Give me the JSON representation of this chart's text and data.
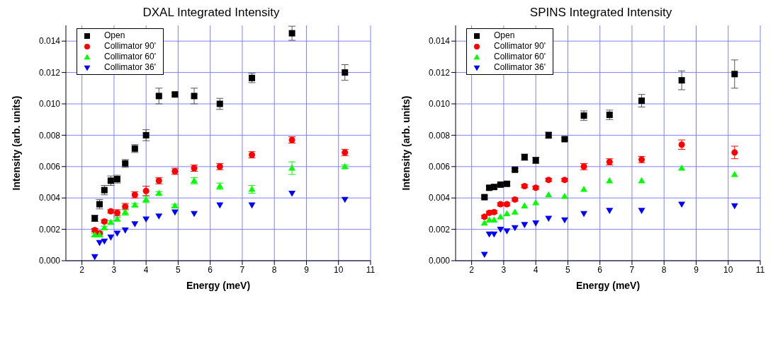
{
  "chart_data": [
    {
      "type": "scatter",
      "title": "DXAL Integrated Intensity",
      "xlabel": "Energy (meV)",
      "ylabel": "Intensity (arb. units)",
      "x": [
        2.4,
        2.55,
        2.7,
        2.9,
        3.1,
        3.35,
        3.65,
        4.0,
        4.4,
        4.9,
        5.5,
        6.3,
        7.3,
        8.55,
        10.2
      ],
      "series": [
        {
          "name": "Open",
          "color": "#000000",
          "marker": "square",
          "values": [
            0.0027,
            0.0036,
            0.0045,
            0.0051,
            0.0052,
            0.0062,
            0.00715,
            0.008,
            0.0105,
            0.0106,
            0.0105,
            0.01,
            0.01165,
            0.0145,
            0.012
          ],
          "errors": [
            0.0002,
            0.0003,
            0.0003,
            0.0003,
            0.00025,
            0.00025,
            0.00025,
            0.00035,
            0.0005,
            0.0001,
            0.0005,
            0.00035,
            0.0003,
            0.00045,
            0.0005
          ]
        },
        {
          "name": "Collimator 90'",
          "color": "#ff0000",
          "marker": "circle",
          "values": [
            0.00195,
            0.00175,
            0.0025,
            0.00315,
            0.00305,
            0.00345,
            0.0042,
            0.00445,
            0.0051,
            0.0057,
            0.0059,
            0.006,
            0.00675,
            0.0077,
            0.0069
          ],
          "errors": [
            0.0001,
            0.0001,
            0.0001,
            0.0001,
            0.0002,
            0.0002,
            0.0002,
            0.0003,
            0.0002,
            0.0002,
            0.0002,
            0.0002,
            0.0002,
            0.0002,
            0.0002
          ]
        },
        {
          "name": "Collimator 60'",
          "color": "#00ff00",
          "marker": "triangle",
          "values": [
            0.00165,
            0.00165,
            0.0021,
            0.00245,
            0.00265,
            0.0031,
            0.00355,
            0.0039,
            0.0043,
            0.0035,
            0.0051,
            0.00475,
            0.00455,
            0.0059,
            0.006
          ],
          "errors": [
            0.0001,
            0.0001,
            0.0001,
            0.0001,
            0.0001,
            0.0002,
            0.0001,
            0.0002,
            0.0001,
            0.0001,
            0.0002,
            0.0002,
            0.00025,
            0.0004,
            0.0001
          ]
        },
        {
          "name": "Collimator 36'",
          "color": "#0000ff",
          "marker": "triangle-down",
          "values": [
            0.00025,
            0.00115,
            0.00125,
            0.0015,
            0.00175,
            0.00195,
            0.00235,
            0.00265,
            0.00285,
            0.0031,
            0.003,
            0.00355,
            0.00355,
            0.0043,
            0.0039
          ]
        }
      ],
      "xlim": [
        1.5,
        11
      ],
      "xticks": [
        2,
        3,
        4,
        5,
        6,
        7,
        8,
        9,
        10,
        11
      ],
      "ylim": [
        0,
        0.015
      ],
      "yticks": [
        {
          "value": 0,
          "label": "0.000"
        },
        {
          "value": 0.002,
          "label": "0.002"
        },
        {
          "value": 0.004,
          "label": "0.004"
        },
        {
          "value": 0.006,
          "label": "0.006"
        },
        {
          "value": 0.008,
          "label": "0.008"
        },
        {
          "value": 0.01,
          "label": "0.010"
        },
        {
          "value": 0.012,
          "label": "0.012"
        },
        {
          "value": 0.014,
          "label": "0.014"
        }
      ],
      "grid": true,
      "legend": "top left"
    },
    {
      "type": "scatter",
      "title": "SPINS Integrated Intensity",
      "xlabel": "Energy (meV)",
      "ylabel": "Intensity (arb. units)",
      "x": [
        2.4,
        2.55,
        2.7,
        2.9,
        3.1,
        3.35,
        3.65,
        4.0,
        4.4,
        4.9,
        5.5,
        6.3,
        7.3,
        8.55,
        10.2
      ],
      "series": [
        {
          "name": "Open",
          "color": "#000000",
          "marker": "square",
          "values": [
            0.00405,
            0.00465,
            0.0047,
            0.00485,
            0.0049,
            0.0058,
            0.0066,
            0.0064,
            0.008,
            0.00775,
            0.00925,
            0.0093,
            0.0102,
            0.0115,
            0.0119
          ],
          "errors": [
            0.0001,
            0.0001,
            0.0001,
            0.0001,
            0.0001,
            0.0001,
            0.0002,
            0.0002,
            0.0002,
            0.0001,
            0.0003,
            0.0003,
            0.0004,
            0.0006,
            0.0009
          ]
        },
        {
          "name": "Collimator 90'",
          "color": "#ff0000",
          "marker": "circle",
          "values": [
            0.0028,
            0.00305,
            0.0031,
            0.0036,
            0.0036,
            0.0039,
            0.00475,
            0.00465,
            0.00515,
            0.00515,
            0.006,
            0.0063,
            0.00645,
            0.0074,
            0.0069
          ],
          "errors": [
            0.0001,
            0.0001,
            0.0001,
            0.0001,
            0.0001,
            0.0001,
            0.0001,
            0.0001,
            0.0001,
            0.0001,
            0.0002,
            0.0002,
            0.0002,
            0.0003,
            0.0004
          ]
        },
        {
          "name": "Collimator 60'",
          "color": "#00ff00",
          "marker": "triangle",
          "values": [
            0.0024,
            0.0026,
            0.0026,
            0.0028,
            0.003,
            0.0031,
            0.0035,
            0.0037,
            0.0042,
            0.0041,
            0.00455,
            0.0051,
            0.0051,
            0.0059,
            0.0055
          ]
        },
        {
          "name": "Collimator 36'",
          "color": "#0000ff",
          "marker": "triangle-down",
          "values": [
            0.0004,
            0.0017,
            0.0017,
            0.002,
            0.0019,
            0.0021,
            0.0023,
            0.0024,
            0.0027,
            0.0026,
            0.003,
            0.0032,
            0.0032,
            0.0036,
            0.0035
          ]
        }
      ],
      "xlim": [
        1.5,
        11
      ],
      "xticks": [
        2,
        3,
        4,
        5,
        6,
        7,
        8,
        9,
        10,
        11
      ],
      "ylim": [
        0,
        0.015
      ],
      "yticks": [
        {
          "value": 0,
          "label": "0.000"
        },
        {
          "value": 0.002,
          "label": "0.002"
        },
        {
          "value": 0.004,
          "label": "0.004"
        },
        {
          "value": 0.006,
          "label": "0.006"
        },
        {
          "value": 0.008,
          "label": "0.008"
        },
        {
          "value": 0.01,
          "label": "0.010"
        },
        {
          "value": 0.012,
          "label": "0.012"
        },
        {
          "value": 0.014,
          "label": "0.014"
        }
      ],
      "grid": true,
      "legend": "top left"
    }
  ]
}
